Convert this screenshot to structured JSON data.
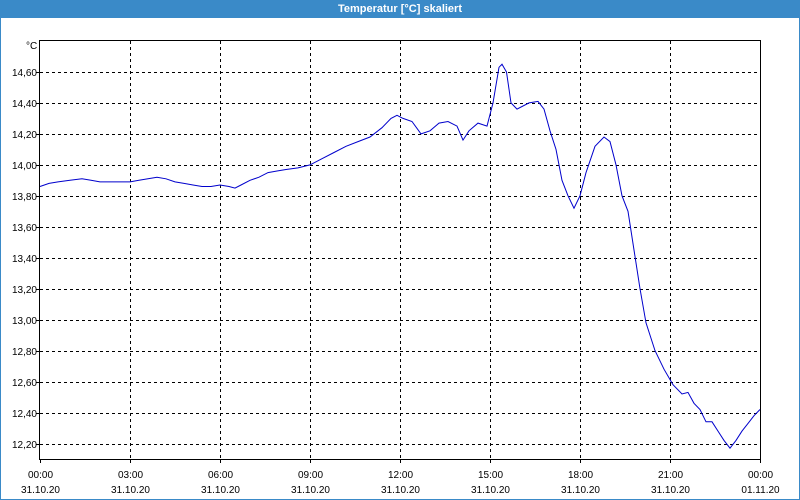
{
  "window": {
    "title": "Temperatur [°C] skaliert"
  },
  "colors": {
    "titlebar": "#3a8ac8",
    "line": "#0000cc",
    "grid": "#000000"
  },
  "chart_data": {
    "type": "line",
    "ylabel": "°C",
    "xlabel": "",
    "ylim": [
      12.1,
      14.8
    ],
    "xlim": [
      0,
      24
    ],
    "grid": true,
    "y_ticks": [
      "14,60",
      "14,40",
      "14,20",
      "14,00",
      "13,80",
      "13,60",
      "13,40",
      "13,20",
      "13,00",
      "12,80",
      "12,60",
      "12,40",
      "12,20"
    ],
    "y_tick_values": [
      14.6,
      14.4,
      14.2,
      14.0,
      13.8,
      13.6,
      13.4,
      13.2,
      13.0,
      12.8,
      12.6,
      12.4,
      12.2
    ],
    "x_ticks": [
      {
        "time": "00:00",
        "date": "31.10.20",
        "hour": 0
      },
      {
        "time": "03:00",
        "date": "31.10.20",
        "hour": 3
      },
      {
        "time": "06:00",
        "date": "31.10.20",
        "hour": 6
      },
      {
        "time": "09:00",
        "date": "31.10.20",
        "hour": 9
      },
      {
        "time": "12:00",
        "date": "31.10.20",
        "hour": 12
      },
      {
        "time": "15:00",
        "date": "31.10.20",
        "hour": 15
      },
      {
        "time": "18:00",
        "date": "31.10.20",
        "hour": 18
      },
      {
        "time": "21:00",
        "date": "31.10.20",
        "hour": 21
      },
      {
        "time": "00:00",
        "date": "01.11.20",
        "hour": 24
      }
    ],
    "series": [
      {
        "x": [
          0,
          0.3,
          0.6,
          1.0,
          1.4,
          1.7,
          2.0,
          2.5,
          3.0,
          3.3,
          3.6,
          3.9,
          4.2,
          4.5,
          4.8,
          5.1,
          5.4,
          5.7,
          6.0,
          6.3,
          6.5,
          6.7,
          7.0,
          7.3,
          7.6,
          7.9,
          8.2,
          8.6,
          9.0,
          9.4,
          9.8,
          10.2,
          10.6,
          11.0,
          11.4,
          11.7,
          11.9,
          12.1,
          12.4,
          12.7,
          13.0,
          13.3,
          13.6,
          13.9,
          14.1,
          14.3,
          14.6,
          14.9,
          15.1,
          15.3,
          15.4,
          15.55,
          15.7,
          15.9,
          16.3,
          16.6,
          16.8,
          17.0,
          17.2,
          17.4,
          17.6,
          17.8,
          18.0,
          18.2,
          18.5,
          18.8,
          19.0,
          19.2,
          19.4,
          19.6,
          19.8,
          20.0,
          20.2,
          20.5,
          20.8,
          21.1,
          21.4,
          21.6,
          21.8,
          22.0,
          22.2,
          22.4,
          22.6,
          22.8,
          23.0,
          23.2,
          23.4,
          23.6,
          23.8,
          24.0
        ],
        "y": [
          13.86,
          13.88,
          13.89,
          13.9,
          13.91,
          13.9,
          13.89,
          13.89,
          13.89,
          13.9,
          13.91,
          13.92,
          13.91,
          13.89,
          13.88,
          13.87,
          13.86,
          13.86,
          13.87,
          13.86,
          13.85,
          13.87,
          13.9,
          13.92,
          13.95,
          13.96,
          13.97,
          13.98,
          14.0,
          14.04,
          14.08,
          14.12,
          14.15,
          14.18,
          14.24,
          14.3,
          14.32,
          14.3,
          14.28,
          14.2,
          14.22,
          14.27,
          14.28,
          14.25,
          14.16,
          14.22,
          14.27,
          14.25,
          14.4,
          14.63,
          14.65,
          14.6,
          14.4,
          14.36,
          14.4,
          14.41,
          14.36,
          14.22,
          14.1,
          13.9,
          13.8,
          13.72,
          13.8,
          13.95,
          14.12,
          14.18,
          14.15,
          14.0,
          13.8,
          13.7,
          13.45,
          13.2,
          12.98,
          12.8,
          12.68,
          12.58,
          12.52,
          12.53,
          12.46,
          12.42,
          12.34,
          12.34,
          12.28,
          12.22,
          12.17,
          12.22,
          12.28,
          12.33,
          12.38,
          12.42
        ]
      }
    ]
  }
}
